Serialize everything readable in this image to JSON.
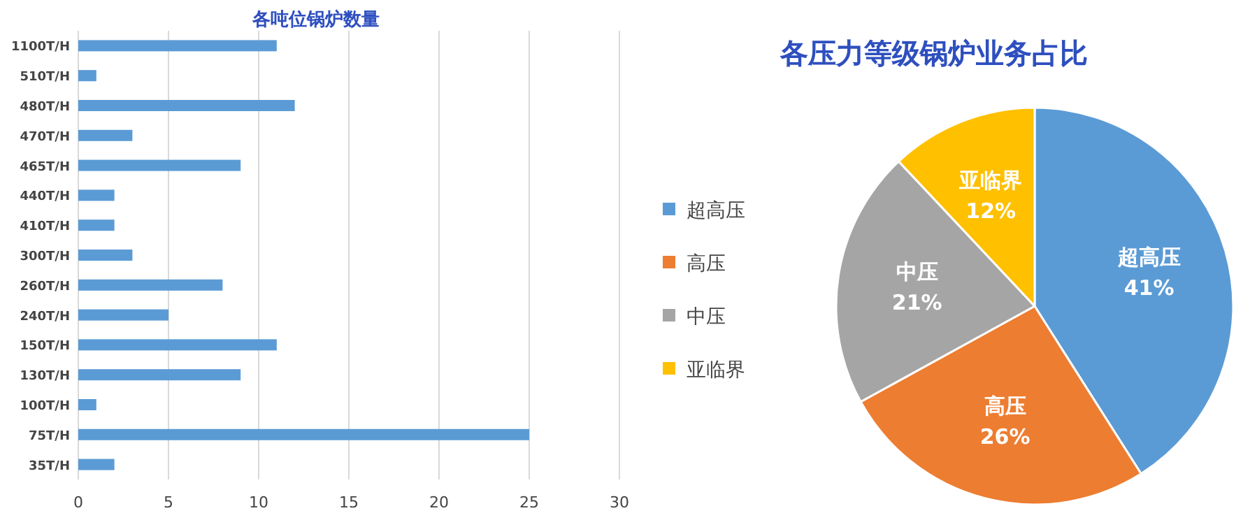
{
  "chart_data": [
    {
      "type": "bar",
      "orientation": "horizontal",
      "title": "各吨位锅炉数量",
      "categories": [
        "1100T/H",
        "510T/H",
        "480T/H",
        "470T/H",
        "465T/H",
        "440T/H",
        "410T/H",
        "300T/H",
        "260T/H",
        "240T/H",
        "150T/H",
        "130T/H",
        "100T/H",
        "75T/H",
        "35T/H"
      ],
      "values": [
        11,
        1,
        12,
        3,
        9,
        2,
        2,
        3,
        8,
        5,
        11,
        9,
        1,
        25,
        2
      ],
      "color": "#5b9bd5",
      "xlim": [
        0,
        30
      ],
      "xticks": [
        0,
        5,
        10,
        15,
        20,
        25,
        30
      ],
      "grid": "x"
    },
    {
      "type": "pie",
      "title": "各压力等级锅炉业务占比",
      "categories": [
        "超高压",
        "高压",
        "中压",
        "亚临界"
      ],
      "values": [
        41,
        26,
        21,
        12
      ],
      "colors": [
        "#5b9bd5",
        "#ed7d31",
        "#a5a5a5",
        "#ffc000"
      ],
      "value_labels": [
        "41%",
        "26%",
        "21%",
        "12%"
      ],
      "legend": "left"
    }
  ]
}
